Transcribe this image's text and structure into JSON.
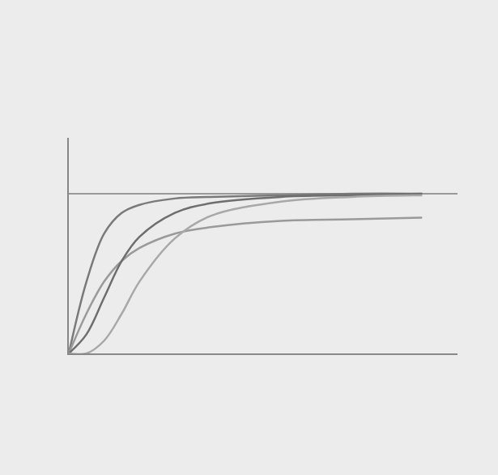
{
  "chart_data": {
    "type": "line",
    "x": [
      0,
      0.5,
      1,
      1.5,
      2,
      3,
      4,
      6,
      8,
      10
    ],
    "series": [
      {
        "color": "#7a7a7a",
        "values": [
          0,
          45,
          75,
          88,
          93,
          97,
          98,
          99,
          100,
          100
        ]
      },
      {
        "color": "#9a9a9a",
        "values": [
          0,
          25,
          45,
          58,
          66,
          75,
          79,
          83,
          84,
          85
        ]
      },
      {
        "color": "#6e6e6e",
        "values": [
          0,
          12,
          35,
          58,
          73,
          88,
          94,
          98,
          99,
          100
        ]
      },
      {
        "color": "#a8a8a8",
        "values": [
          0,
          0,
          8,
          25,
          45,
          72,
          86,
          95,
          98,
          99
        ]
      }
    ],
    "xlim": [
      0,
      11
    ],
    "ylim": [
      0,
      135
    ],
    "xticks": [],
    "yticks": [
      100
    ],
    "grid": true,
    "tick_labels": false
  }
}
